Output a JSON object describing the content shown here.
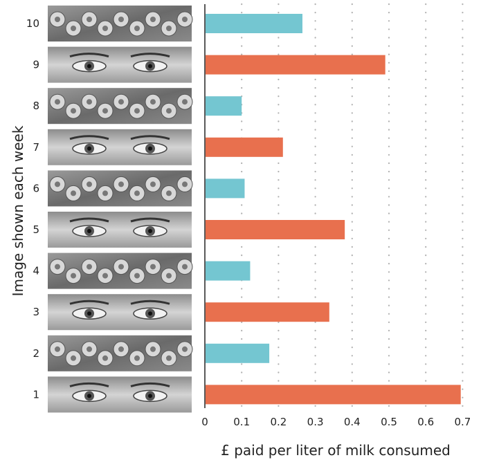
{
  "chart_data": {
    "type": "bar",
    "orientation": "horizontal",
    "ylabel": "Image shown each week",
    "xlabel": "£ paid per liter of milk consumed",
    "categories": [
      "10",
      "9",
      "8",
      "7",
      "6",
      "5",
      "4",
      "3",
      "2",
      "1"
    ],
    "image_kinds": [
      "flowers",
      "eyes",
      "flowers",
      "eyes",
      "flowers",
      "eyes",
      "flowers",
      "eyes",
      "flowers",
      "eyes"
    ],
    "values": [
      0.265,
      0.49,
      0.1,
      0.212,
      0.108,
      0.38,
      0.123,
      0.338,
      0.175,
      0.695
    ],
    "bar_colors": [
      "#74c6d1",
      "#e8704e",
      "#74c6d1",
      "#e8704e",
      "#74c6d1",
      "#e8704e",
      "#74c6d1",
      "#e8704e",
      "#74c6d1",
      "#e8704e"
    ],
    "xticks": [
      "0",
      "0.1",
      "0.2",
      "0.3",
      "0.4",
      "0.5",
      "0.6",
      "0.7"
    ],
    "xlim": [
      0,
      0.7
    ],
    "grid": "vertical dotted"
  },
  "colors": {
    "flowers_bar": "#74c6d1",
    "eyes_bar": "#e8704e",
    "grid": "#b0b0b0",
    "axis": "#222222"
  }
}
